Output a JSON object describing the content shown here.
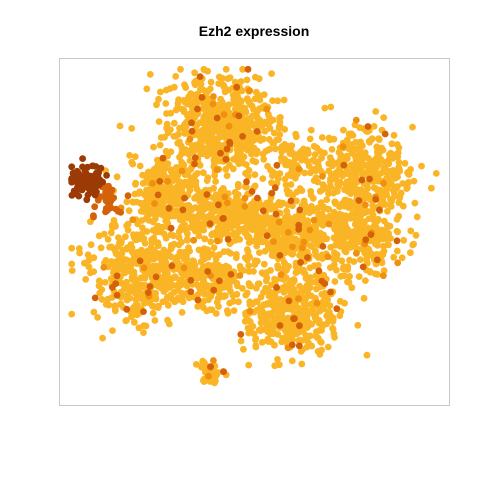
{
  "chart_data": {
    "type": "scatter",
    "title": "Ezh2 expression",
    "xlabel": "",
    "ylabel": "",
    "grid": false,
    "legend": "none",
    "axes_visible": false,
    "colors": {
      "base": "#fab526",
      "mid": "#f0900f",
      "high": "#d4620a",
      "max": "#9c3a06",
      "frame": "#c8c8c8"
    },
    "expression_scale": [
      0,
      1
    ],
    "clusters": [
      {
        "name": "",
        "cx": 0.42,
        "cy": 0.82,
        "sx": 0.085,
        "sy": 0.075,
        "n": 600,
        "expr": 0.05
      },
      {
        "name": "",
        "cx": 0.25,
        "cy": 0.62,
        "sx": 0.055,
        "sy": 0.055,
        "n": 260,
        "expr": 0.08
      },
      {
        "name": "",
        "cx": 0.41,
        "cy": 0.55,
        "sx": 0.075,
        "sy": 0.05,
        "n": 300,
        "expr": 0.06
      },
      {
        "name": "",
        "cx": 0.2,
        "cy": 0.38,
        "sx": 0.075,
        "sy": 0.085,
        "n": 420,
        "expr": 0.05
      },
      {
        "name": "",
        "cx": 0.6,
        "cy": 0.5,
        "sx": 0.085,
        "sy": 0.075,
        "n": 480,
        "expr": 0.07
      },
      {
        "name": "",
        "cx": 0.8,
        "cy": 0.47,
        "sx": 0.055,
        "sy": 0.055,
        "n": 180,
        "expr": 0.06
      },
      {
        "name": "",
        "cx": 0.8,
        "cy": 0.67,
        "sx": 0.07,
        "sy": 0.08,
        "n": 360,
        "expr": 0.06
      },
      {
        "name": "",
        "cx": 0.6,
        "cy": 0.25,
        "sx": 0.08,
        "sy": 0.065,
        "n": 400,
        "expr": 0.06
      },
      {
        "name": "",
        "cx": 0.38,
        "cy": 0.36,
        "sx": 0.055,
        "sy": 0.05,
        "n": 180,
        "expr": 0.05
      },
      {
        "name": "",
        "cx": 0.61,
        "cy": 0.72,
        "sx": 0.045,
        "sy": 0.035,
        "n": 80,
        "expr": 0.1
      },
      {
        "name": "",
        "cx": 0.05,
        "cy": 0.65,
        "sx": 0.025,
        "sy": 0.03,
        "n": 90,
        "expr": 0.85
      },
      {
        "name": "",
        "cx": 0.1,
        "cy": 0.6,
        "sx": 0.02,
        "sy": 0.035,
        "n": 30,
        "expr": 0.55
      },
      {
        "name": "",
        "cx": 0.38,
        "cy": 0.07,
        "sx": 0.018,
        "sy": 0.018,
        "n": 40,
        "expr": 0.12
      }
    ],
    "xlim": [
      0,
      1
    ],
    "ylim": [
      0,
      1
    ]
  }
}
